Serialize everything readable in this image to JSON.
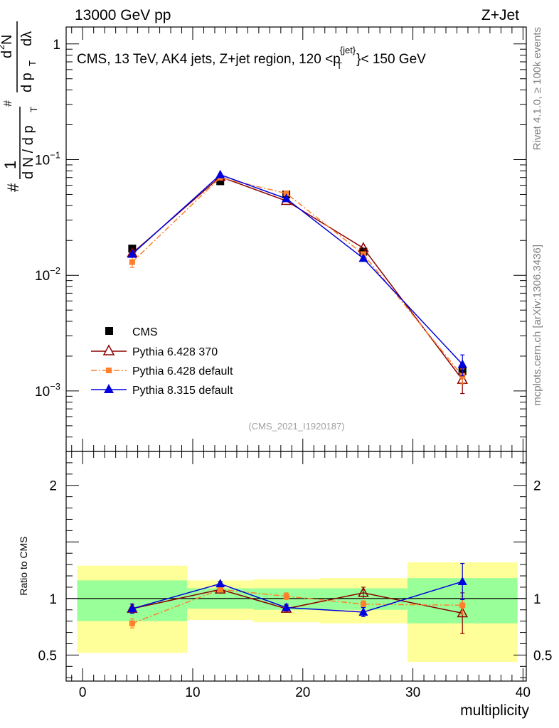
{
  "header": {
    "left": "13000 GeV pp",
    "right": "Z+Jet"
  },
  "side": {
    "rivet": "Rivet 4.1.0, ≥ 100k events",
    "mcplots": "mcplots.cern.ch [arXiv:1306.3436]"
  },
  "chart_data": [
    {
      "type": "scatter",
      "panel": "main",
      "title": "CMS, 13 TeV, AK4 jets, Z+jet region, 120 <p_T^{jet}< 150 GeV",
      "title_parts": {
        "pre": "CMS, 13 TeV, AK4 jets, Z+jet region, 120 <p",
        "sup": "{jet}",
        "sub": "T",
        "post": "}< 150 GeV"
      },
      "ylabel": "1/N dN/dp_T d²N/dp_T dλ",
      "ylabel_parts": {
        "hash": "#",
        "one": "1",
        "dn": "d N / d p",
        "t": "T",
        "d2n": "d",
        "two": "2",
        "n": "N",
        "dpdl": "d p",
        "dl": "dλ"
      },
      "yscale": "log",
      "ylim": [
        0.0003,
        1.4
      ],
      "yticks": [
        {
          "value": 1,
          "label": "1"
        },
        {
          "value": 0.1,
          "label": "10",
          "exp": "−1"
        },
        {
          "value": 0.01,
          "label": "10",
          "exp": "−2"
        },
        {
          "value": 0.001,
          "label": "10",
          "exp": "−3"
        }
      ],
      "watermark": "(CMS_2021_I1920187)",
      "legend_position": "bottom-left",
      "series": [
        {
          "name": "CMS",
          "color": "#000000",
          "marker": "square",
          "style": "none",
          "x": [
            4.5,
            12.5,
            18.5,
            25.5,
            34.5
          ],
          "y": [
            0.017,
            0.065,
            0.05,
            0.016,
            0.00148
          ]
        },
        {
          "name": "Pythia 6.428 370",
          "color": "#8b0000",
          "marker": "triangle-open",
          "style": "solid",
          "x": [
            4.5,
            12.5,
            18.5,
            25.5,
            34.5
          ],
          "y": [
            0.0155,
            0.071,
            0.044,
            0.0172,
            0.00125
          ],
          "err": [
            0,
            0,
            0,
            0,
            0.0003
          ]
        },
        {
          "name": "Pythia 6.428 default",
          "color": "#ff7f2a",
          "marker": "square-small",
          "style": "dashdot",
          "x": [
            4.5,
            12.5,
            18.5,
            25.5,
            34.5
          ],
          "y": [
            0.013,
            0.07,
            0.051,
            0.0152,
            0.00135
          ],
          "err": [
            0.0013,
            0,
            0,
            0,
            0.0002
          ]
        },
        {
          "name": "Pythia 8.315 default",
          "color": "#0000dd",
          "marker": "triangle",
          "style": "solid",
          "x": [
            4.5,
            12.5,
            18.5,
            25.5,
            34.5
          ],
          "y": [
            0.0152,
            0.074,
            0.046,
            0.014,
            0.0017
          ],
          "err": [
            0,
            0,
            0,
            0,
            0.00035
          ]
        }
      ]
    },
    {
      "type": "scatter",
      "panel": "ratio",
      "ylabel": "Ratio to CMS",
      "xlabel": "multiplicity",
      "xlim": [
        -1.5,
        40.3
      ],
      "ylim": [
        0.27,
        2.3
      ],
      "xticks": [
        0,
        10,
        20,
        30,
        40
      ],
      "yticks": [
        {
          "value": 0.5,
          "label": "0.5"
        },
        {
          "value": 1,
          "label": "1"
        },
        {
          "value": 2,
          "label": "2"
        }
      ],
      "bands": [
        {
          "x0": -0.5,
          "x1": 9.5,
          "g": [
            0.8,
            1.16
          ],
          "y": [
            0.52,
            1.29
          ]
        },
        {
          "x0": 9.5,
          "x1": 15.5,
          "g": [
            0.91,
            1.09
          ],
          "y": [
            0.81,
            1.16
          ]
        },
        {
          "x0": 15.5,
          "x1": 21.5,
          "g": [
            0.9,
            1.09
          ],
          "y": [
            0.79,
            1.17
          ]
        },
        {
          "x0": 21.5,
          "x1": 29.5,
          "g": [
            0.9,
            1.09
          ],
          "y": [
            0.78,
            1.18
          ]
        },
        {
          "x0": 29.5,
          "x1": 39.5,
          "g": [
            0.78,
            1.18
          ],
          "y": [
            0.44,
            1.32
          ]
        }
      ],
      "series": [
        {
          "name": "Pythia 6.428 370",
          "color": "#8b0000",
          "marker": "triangle-open",
          "style": "solid",
          "x": [
            4.5,
            12.5,
            18.5,
            25.5,
            34.5
          ],
          "y": [
            0.91,
            1.08,
            0.91,
            1.05,
            0.87
          ],
          "err": [
            0.04,
            0.02,
            0.03,
            0.05,
            0.18
          ]
        },
        {
          "name": "Pythia 6.428 default",
          "color": "#ff7f2a",
          "marker": "square-small",
          "style": "dashdot",
          "x": [
            4.5,
            12.5,
            18.5,
            25.5,
            34.5
          ],
          "y": [
            0.78,
            1.08,
            1.02,
            0.95,
            0.94
          ],
          "err": [
            0.04,
            0.02,
            0.03,
            0.03,
            0.08
          ]
        },
        {
          "name": "Pythia 8.315 default",
          "color": "#0000dd",
          "marker": "triangle",
          "style": "solid",
          "x": [
            4.5,
            12.5,
            18.5,
            25.5,
            34.5
          ],
          "y": [
            0.91,
            1.13,
            0.92,
            0.88,
            1.15
          ],
          "err": [
            0.04,
            0.02,
            0.03,
            0.04,
            0.16
          ]
        }
      ]
    }
  ]
}
